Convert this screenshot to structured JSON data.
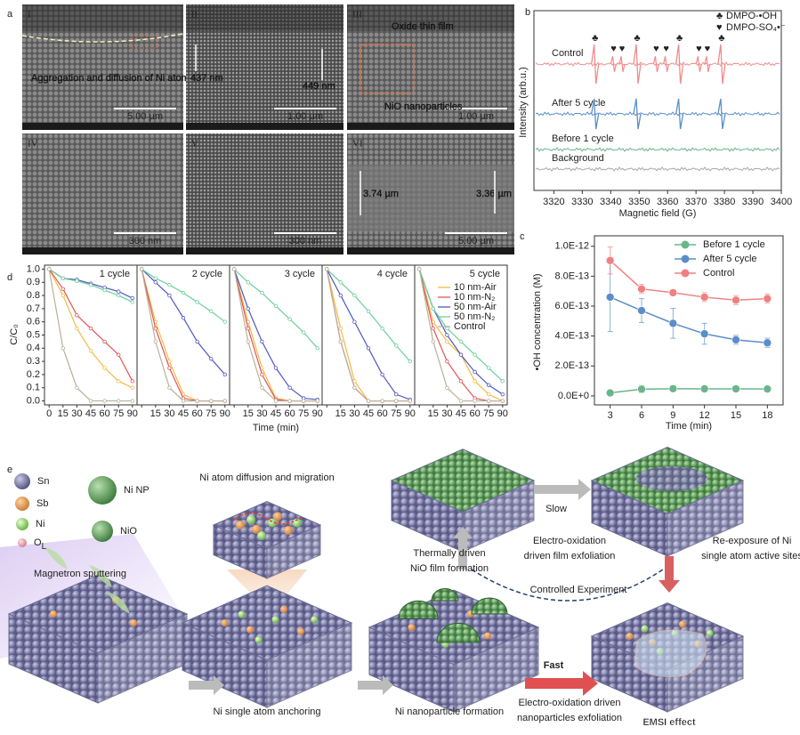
{
  "panel_a": {
    "label": "a",
    "images": [
      {
        "numeral": "I",
        "scale_bar": "5.00 µm",
        "notes": [
          "Aggregation and diffusion of Ni atoms"
        ]
      },
      {
        "numeral": "II",
        "scale_bar": "1.00 µm",
        "notes": [
          "437 nm",
          "449 nm"
        ]
      },
      {
        "numeral": "III",
        "scale_bar": "1.00 µm",
        "notes": [
          "Oxide thin film",
          "NiO nanoparticles"
        ]
      },
      {
        "numeral": "IV",
        "scale_bar": "300 nm"
      },
      {
        "numeral": "V",
        "scale_bar": "300 nm"
      },
      {
        "numeral": "VI",
        "scale_bar": "5.00 µm",
        "notes": [
          "3.74 µm",
          "3.36 µm"
        ]
      }
    ]
  },
  "panel_b": {
    "label": "b",
    "type": "spectrum",
    "x_label": "Magnetic field (G)",
    "y_label": "Intensity (arb.u.)",
    "xlim": [
      3313,
      3400
    ],
    "xticks": [
      3320,
      3330,
      3340,
      3350,
      3360,
      3370,
      3380,
      3390,
      3400
    ],
    "legend": [
      {
        "symbol": "♣",
        "name": "DMPO-•OH"
      },
      {
        "symbol": "♥",
        "name": "DMPO-SO₄•⁻"
      }
    ],
    "series": [
      {
        "name": "Control",
        "color": "#f08c8c",
        "oh_peaks": [
          3334.5,
          3349.3,
          3364.2,
          3379
        ],
        "so4_peaks": [
          3341,
          3344,
          3356,
          3359.5,
          3371,
          3374
        ]
      },
      {
        "name": "After 5 cycle",
        "color": "#5b8fc9",
        "oh_peaks": [
          3334.5,
          3349.3,
          3364.2,
          3379
        ]
      },
      {
        "name": "Before 1 cycle",
        "color": "#6db38a"
      },
      {
        "name": "Background",
        "color": "#a8a8a8"
      }
    ]
  },
  "panel_c": {
    "label": "c",
    "type": "line",
    "x_label": "Time (min)",
    "y_label": "•OH concentration (M)",
    "x": [
      3,
      6,
      9,
      12,
      15,
      18
    ],
    "xlim": [
      1.5,
      19.5
    ],
    "xticks": [
      3,
      6,
      9,
      12,
      15,
      18
    ],
    "ylim": [
      -6e-14,
      1.07e-12
    ],
    "yticks": [
      {
        "value": 0,
        "label": "0.0E+0"
      },
      {
        "value": 2e-13,
        "label": "2.0E-13"
      },
      {
        "value": 4e-13,
        "label": "4.0E-13"
      },
      {
        "value": 6e-13,
        "label": "6.0E-13"
      },
      {
        "value": 8e-13,
        "label": "8.0E-13"
      },
      {
        "value": 1e-12,
        "label": "1.0E-12"
      }
    ],
    "series": [
      {
        "name": "Before 1 cycle",
        "color": "#6bb58a",
        "values": [
          2e-14,
          4.5e-14,
          4.8e-14,
          4.7e-14,
          4.7e-14,
          4.6e-14
        ],
        "errors": [
          1e-14,
          2.5e-14,
          2e-14,
          1.5e-14,
          1.5e-14,
          1.5e-14
        ]
      },
      {
        "name": "After 5 cycle",
        "color": "#5b8dc9",
        "values": [
          6.6e-13,
          5.7e-13,
          4.85e-13,
          4.15e-13,
          3.75e-13,
          3.55e-13
        ],
        "errors": [
          2.3e-13,
          8e-14,
          1e-13,
          7e-14,
          3e-14,
          3e-14
        ]
      },
      {
        "name": "Control",
        "color": "#f08080",
        "values": [
          9.05e-13,
          7.15e-13,
          6.9e-13,
          6.6e-13,
          6.4e-13,
          6.5e-13
        ],
        "errors": [
          9e-14,
          3e-14,
          2e-14,
          3e-14,
          3e-14,
          3e-14
        ]
      }
    ]
  },
  "panel_d": {
    "label": "d",
    "type": "line",
    "x_label": "Time (min)",
    "y_label": "C/C₀",
    "x": [
      0,
      15,
      30,
      45,
      60,
      75,
      90
    ],
    "xlim": [
      -5,
      95
    ],
    "xticks": [
      0,
      15,
      30,
      45,
      60,
      75,
      90
    ],
    "ylim": [
      -0.03,
      1.03
    ],
    "yticks": [
      {
        "value": 0,
        "label": "0.0"
      },
      {
        "value": 0.1,
        "label": "0.1"
      },
      {
        "value": 0.2,
        "label": "0.2"
      },
      {
        "value": 0.3,
        "label": "0.3"
      },
      {
        "value": 0.4,
        "label": "0.4"
      },
      {
        "value": 0.5,
        "label": "0.5"
      },
      {
        "value": 0.6,
        "label": "0.6"
      },
      {
        "value": 0.7,
        "label": "0.7"
      },
      {
        "value": 0.8,
        "label": "0.8"
      },
      {
        "value": 0.9,
        "label": "0.9"
      },
      {
        "value": 1,
        "label": "1.0"
      }
    ],
    "series": [
      {
        "name": "10 nm-Air",
        "color": "#f5b942"
      },
      {
        "name": "10 nm-N₂",
        "color": "#e05555"
      },
      {
        "name": "50 nm-Air",
        "color": "#5058c0"
      },
      {
        "name": "50 nm-N₂",
        "color": "#6ccf9a"
      },
      {
        "name": "Control",
        "color": "#b9b09a"
      }
    ],
    "subplots": [
      {
        "title": "1 cycle",
        "values": [
          [
            1,
            0.8,
            0.55,
            0.38,
            0.25,
            0.15,
            0.1
          ],
          [
            1,
            0.85,
            0.65,
            0.55,
            0.45,
            0.35,
            0.15
          ],
          [
            1,
            0.93,
            0.92,
            0.89,
            0.86,
            0.83,
            0.78
          ],
          [
            1,
            0.93,
            0.91,
            0.88,
            0.84,
            0.8,
            0.75
          ],
          [
            1,
            0.4,
            0.1,
            0,
            0,
            0,
            0
          ]
        ]
      },
      {
        "title": "2 cycle",
        "values": [
          [
            1,
            0.6,
            0.3,
            0.05,
            0,
            0,
            0
          ],
          [
            1,
            0.55,
            0.25,
            0.02,
            0,
            0,
            0
          ],
          [
            1,
            0.9,
            0.8,
            0.63,
            0.45,
            0.32,
            0.2
          ],
          [
            1,
            0.93,
            0.88,
            0.82,
            0.75,
            0.68,
            0.6
          ],
          [
            1,
            0.45,
            0.1,
            0,
            0,
            0,
            0
          ]
        ]
      },
      {
        "title": "3 cycle",
        "values": [
          [
            1,
            0.6,
            0.25,
            0.02,
            0,
            0,
            0
          ],
          [
            1,
            0.55,
            0.2,
            0.01,
            0,
            0,
            0
          ],
          [
            1,
            0.7,
            0.45,
            0.25,
            0.1,
            0.02,
            0.01
          ],
          [
            1,
            0.9,
            0.82,
            0.72,
            0.62,
            0.52,
            0.4
          ],
          [
            1,
            0.45,
            0.1,
            0,
            0,
            0,
            0
          ]
        ]
      },
      {
        "title": "4 cycle",
        "values": [
          [
            1,
            0.55,
            0.15,
            0,
            0,
            0,
            0
          ],
          [
            1,
            0.45,
            0.1,
            0,
            0,
            0,
            0
          ],
          [
            1,
            0.8,
            0.6,
            0.4,
            0.2,
            0.05,
            0.01
          ],
          [
            1,
            0.9,
            0.8,
            0.68,
            0.55,
            0.42,
            0.3
          ],
          [
            1,
            0.45,
            0.1,
            0,
            0,
            0,
            0
          ]
        ]
      },
      {
        "title": "5 cycle",
        "values": [
          [
            1,
            0.6,
            0.45,
            0.35,
            0.15,
            0.05,
            0
          ],
          [
            1,
            0.55,
            0.3,
            0.15,
            0.02,
            0,
            0
          ],
          [
            1,
            0.7,
            0.5,
            0.35,
            0.22,
            0.12,
            0.05
          ],
          [
            1,
            0.7,
            0.55,
            0.45,
            0.35,
            0.25,
            0.15
          ],
          [
            1,
            0.45,
            0.1,
            0,
            0,
            0,
            0
          ]
        ]
      }
    ]
  },
  "panel_e": {
    "label": "e",
    "legend": [
      {
        "label": "Sn"
      },
      {
        "label": "Sb"
      },
      {
        "label": "Ni"
      },
      {
        "label": "O",
        "subscript": "L"
      },
      {
        "label": "Ni NP"
      },
      {
        "label": "NiO"
      }
    ],
    "inset_title": "Ni atom diffusion and migration",
    "process": "Magnetron sputtering",
    "steps": [
      [
        "Ni single atom anchoring"
      ],
      [
        "Ni nanoparticle formation"
      ],
      [
        "Thermally driven",
        "NiO film formation"
      ],
      [
        "Electro-oxidation",
        "driven film exfoliation"
      ],
      [
        "Re-exposure of Ni",
        "single atom active sites"
      ],
      [
        "Electro-oxidation driven",
        "nanoparticles exfoliation"
      ]
    ],
    "speeds": [
      "Slow",
      "Fast"
    ],
    "control": "Controlled Experiment",
    "effect": "EMSI effect"
  }
}
